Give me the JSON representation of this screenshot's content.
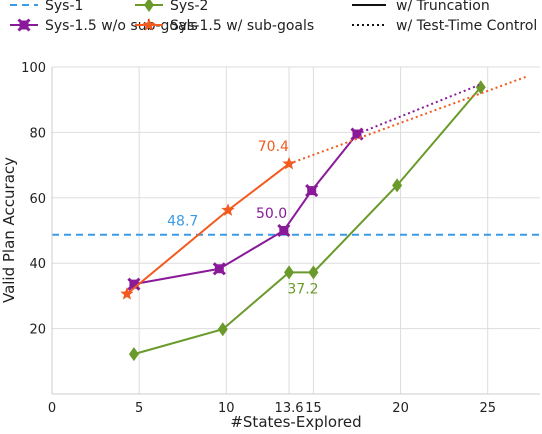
{
  "chart_data": {
    "type": "line",
    "title": "",
    "xlabel": "#States-Explored",
    "ylabel": "Valid Plan Accuracy",
    "xlim": [
      0,
      28
    ],
    "ylim": [
      0,
      100
    ],
    "xticks": [
      0,
      5,
      10,
      13.6,
      15,
      20,
      25
    ],
    "xtick_labels": [
      "0",
      "5",
      "10",
      "13.6",
      "15",
      "20",
      "25"
    ],
    "yticks": [
      20,
      40,
      60,
      80,
      100
    ],
    "ytick_labels": [
      "20",
      "40",
      "60",
      "80",
      "100"
    ],
    "grid": true,
    "legend_placement": "top",
    "series": [
      {
        "name": "Sys-1",
        "color": "#3b9be6",
        "marker": "none",
        "style": "dashed",
        "x": [
          0,
          28
        ],
        "y": [
          48.7,
          48.7
        ]
      },
      {
        "name": "Sys-2",
        "color": "#6a9a2a",
        "marker": "diamond",
        "style": "solid",
        "x": [
          4.7,
          9.8,
          13.6,
          15.0,
          19.8,
          24.6
        ],
        "y": [
          12.2,
          19.8,
          37.2,
          37.2,
          63.8,
          93.8
        ]
      },
      {
        "name": "Sys-1.5 w/o sub-goals",
        "color": "#8a1a9a",
        "marker": "x-square",
        "style": "solid",
        "x": [
          4.7,
          9.6,
          13.3,
          14.9,
          17.5
        ],
        "y": [
          33.6,
          38.3,
          50.0,
          62.2,
          79.5
        ],
        "extension": {
          "x": [
            17.5,
            24.5
          ],
          "y": [
            79.5,
            94.5
          ]
        }
      },
      {
        "name": "Sys-1.5 w/ sub-goals",
        "color": "#f25a1f",
        "marker": "star",
        "style": "solid",
        "x": [
          4.3,
          10.1,
          13.6
        ],
        "y": [
          30.6,
          56.2,
          70.4
        ],
        "extension": {
          "x": [
            13.6,
            27.2
          ],
          "y": [
            70.4,
            97.0
          ]
        }
      }
    ],
    "line_style_legend": [
      {
        "label": "w/ Truncation",
        "style": "solid"
      },
      {
        "label": "w/ Test-Time Control",
        "style": "dotted"
      }
    ],
    "annotations": [
      {
        "text": "48.7",
        "x": 7.5,
        "y": 51.6,
        "color": "#3b9be6"
      },
      {
        "text": "50.0",
        "x": 12.6,
        "y": 53.8,
        "color": "#8a1a9a"
      },
      {
        "text": "70.4",
        "x": 12.7,
        "y": 74.3,
        "color": "#f25a1f"
      },
      {
        "text": "37.2",
        "x": 14.4,
        "y": 30.8,
        "color": "#6a9a2a"
      }
    ]
  }
}
